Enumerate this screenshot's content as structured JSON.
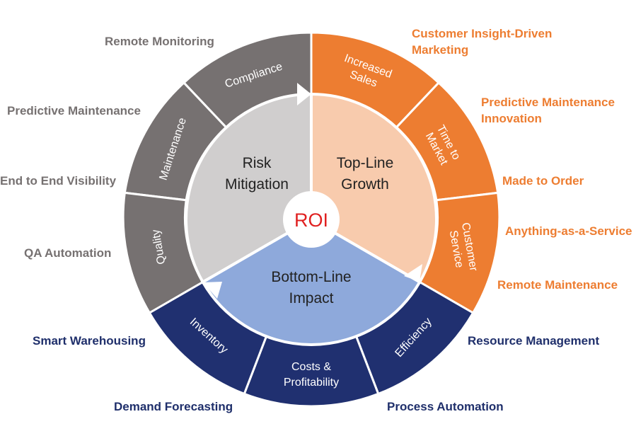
{
  "center": {
    "label": "ROI"
  },
  "quadrants": {
    "risk": {
      "line1": "Risk",
      "line2": "Mitigation",
      "color": "#D0CECE",
      "outer_color": "#767171"
    },
    "growth": {
      "line1": "Top-Line",
      "line2": "Growth",
      "color": "#F8CBAD",
      "outer_color": "#ED7D31"
    },
    "impact": {
      "line1": "Bottom-Line",
      "line2": "Impact",
      "color": "#8EA9DB",
      "outer_color": "#203070"
    }
  },
  "outer_segments": {
    "compliance": "Compliance",
    "maintenance": "Maintenance",
    "quality": "Quality",
    "increased_sales_1": "Increased",
    "increased_sales_2": "Sales",
    "time_to_market_1": "Time to",
    "time_to_market_2": "Market",
    "customer_service_1": "Customer",
    "customer_service_2": "Service",
    "inventory": "Inventory",
    "costs_1": "Costs &",
    "costs_2": "Profitability",
    "efficiency": "Efficiency"
  },
  "labels": {
    "remote_monitoring": "Remote Monitoring",
    "predictive_maintenance": "Predictive Maintenance",
    "end_to_end": "End to End Visibility",
    "qa_automation": "QA Automation",
    "customer_insight_1": "Customer Insight-Driven",
    "customer_insight_2": "Marketing",
    "pred_maint_innov_1": "Predictive Maintenance",
    "pred_maint_innov_2": "Innovation",
    "made_to_order": "Made to Order",
    "anything_as_service": "Anything-as-a-Service",
    "remote_maintenance": "Remote Maintenance",
    "smart_warehousing": "Smart Warehousing",
    "demand_forecasting": "Demand Forecasting",
    "resource_management": "Resource Management",
    "process_automation": "Process Automation"
  }
}
